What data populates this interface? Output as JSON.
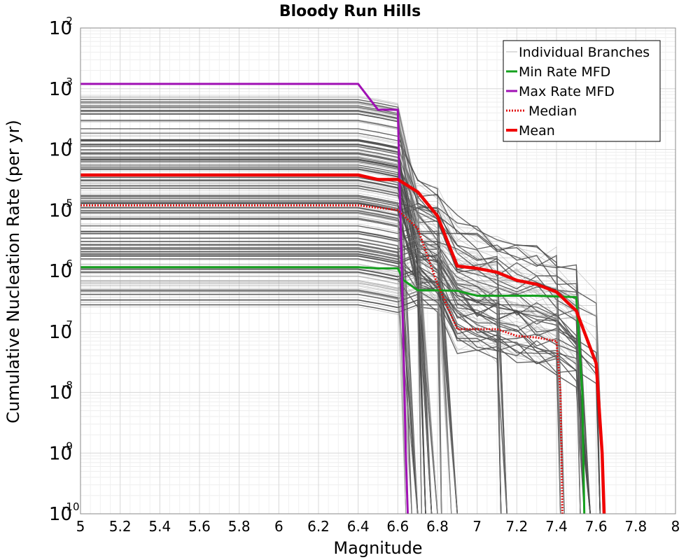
{
  "chart_data": {
    "type": "line",
    "title": "Bloody Run Hills",
    "xlabel": "Magnitude",
    "ylabel": "Cumulative Nucleation Rate (per yr)",
    "xlim": [
      5,
      8
    ],
    "ylim": [
      1e-10,
      0.01
    ],
    "y_scale": "log",
    "grid": true,
    "legend_position": "top-right",
    "x_ticks": [
      "5",
      "5.2",
      "5.4",
      "5.6",
      "5.8",
      "6",
      "6.2",
      "6.4",
      "6.6",
      "6.8",
      "7",
      "7.2",
      "7.4",
      "7.6",
      "7.8",
      "8"
    ],
    "y_ticks": [
      {
        "base": "10",
        "exp": "-10",
        "value": 1e-10
      },
      {
        "base": "10",
        "exp": "-9",
        "value": 1e-09
      },
      {
        "base": "10",
        "exp": "-8",
        "value": 1e-08
      },
      {
        "base": "10",
        "exp": "-7",
        "value": 1e-07
      },
      {
        "base": "10",
        "exp": "-6",
        "value": 1e-06
      },
      {
        "base": "10",
        "exp": "-5",
        "value": 1e-05
      },
      {
        "base": "10",
        "exp": "-4",
        "value": 0.0001
      },
      {
        "base": "10",
        "exp": "-3",
        "value": 0.001
      },
      {
        "base": "10",
        "exp": "-2",
        "value": 0.01
      }
    ],
    "series": [
      {
        "name": "Individual Branches",
        "color": "#555555",
        "style": "thin",
        "x": [
          5.0,
          6.4,
          6.5,
          6.6,
          6.7,
          6.8,
          6.9,
          7.0,
          7.1,
          7.2,
          7.3,
          7.4,
          7.5,
          7.6
        ],
        "values": [
          8e-06,
          8e-06,
          7e-06,
          6e-06,
          3e-06,
          2e-06,
          5e-07,
          4e-07,
          3e-07,
          2.5e-07,
          2e-07,
          1.5e-07,
          1e-07,
          5e-08
        ]
      },
      {
        "name": "Min Rate MFD",
        "color": "#14a01e",
        "style": "solid",
        "x": [
          5.0,
          6.4,
          6.5,
          6.6,
          6.63,
          6.7,
          6.8,
          6.9,
          7.0,
          7.1,
          7.2,
          7.3,
          7.4,
          7.5,
          7.53,
          7.54
        ],
        "values": [
          1.15e-06,
          1.15e-06,
          1.1e-06,
          1.1e-06,
          7e-07,
          4.8e-07,
          4.8e-07,
          4.7e-07,
          3.9e-07,
          3.9e-07,
          3.9e-07,
          3.9e-07,
          3.8e-07,
          3.7e-07,
          1e-08,
          1e-10
        ]
      },
      {
        "name": "Max Rate MFD",
        "color": "#a010b4",
        "style": "solid",
        "x": [
          5.0,
          6.4,
          6.5,
          6.6,
          6.62,
          6.64,
          6.65
        ],
        "values": [
          0.0012,
          0.0012,
          0.00045,
          0.00045,
          1e-06,
          1e-09,
          1e-10
        ]
      },
      {
        "name": "Median",
        "color": "#e01010",
        "style": "dotted",
        "x": [
          5.0,
          6.4,
          6.5,
          6.6,
          6.7,
          6.8,
          6.9,
          7.0,
          7.1,
          7.2,
          7.3,
          7.4,
          7.42,
          7.43
        ],
        "values": [
          1.2e-05,
          1.2e-05,
          1.1e-05,
          1e-05,
          5e-06,
          6e-07,
          1.1e-07,
          1.1e-07,
          1.1e-07,
          8.5e-08,
          8e-08,
          7e-08,
          1e-08,
          1e-10
        ]
      },
      {
        "name": "Mean",
        "color": "#f00000",
        "style": "thick",
        "x": [
          5.0,
          6.4,
          6.5,
          6.6,
          6.7,
          6.8,
          6.9,
          7.0,
          7.1,
          7.2,
          7.3,
          7.4,
          7.5,
          7.6,
          7.63,
          7.64
        ],
        "values": [
          3.8e-05,
          3.8e-05,
          3.2e-05,
          3.2e-05,
          2e-05,
          8e-06,
          1.2e-06,
          1.1e-06,
          9.5e-07,
          7e-07,
          6e-07,
          4.5e-07,
          2.2e-07,
          3e-08,
          1e-09,
          1e-10
        ]
      }
    ]
  }
}
